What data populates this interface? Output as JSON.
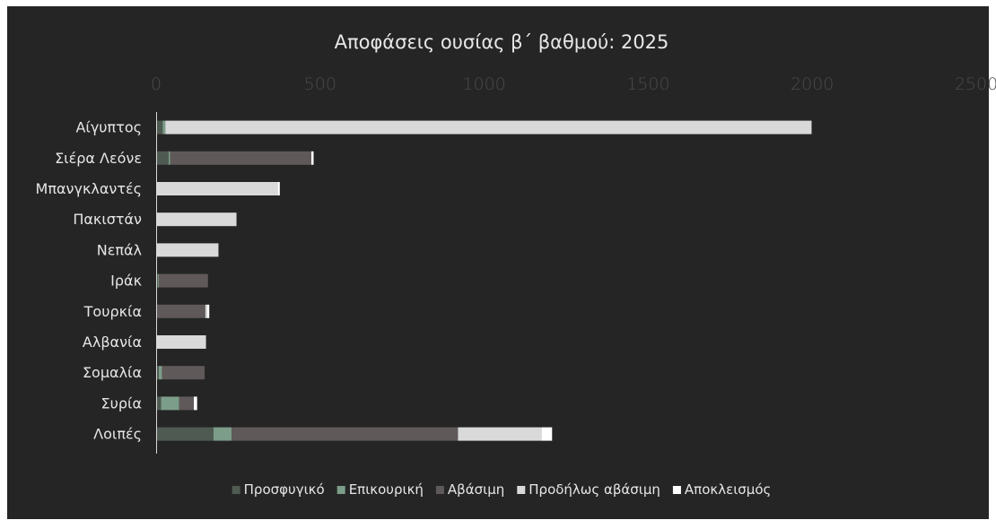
{
  "chart_data": {
    "type": "bar",
    "orientation": "horizontal",
    "stacked": true,
    "title": "Αποφάσεις ουσίας β΄ βαθμού: 2025",
    "xlabel": "",
    "ylabel": "",
    "xlim": [
      0,
      2500
    ],
    "xticks": [
      0,
      500,
      1000,
      1500,
      2000,
      2500
    ],
    "xtick_labels": [
      "0",
      "500",
      "1000",
      "1500",
      "2000",
      "2500"
    ],
    "grid": false,
    "legend_position": "bottom",
    "categories": [
      "Αίγυπτος",
      "Σιέρα Λεόνε",
      "Μπανγκλαντές",
      "Πακιστάν",
      "Νεπάλ",
      "Ιράκ",
      "Τουρκία",
      "Αλβανία",
      "Σομαλία",
      "Συρία",
      "Λοιπές"
    ],
    "series": [
      {
        "name": "Προσφυγικό",
        "color": "#4f5b52",
        "values": [
          20,
          38,
          0,
          0,
          0,
          5,
          0,
          0,
          8,
          15,
          175
        ]
      },
      {
        "name": "Επικουρική",
        "color": "#7c9d89",
        "values": [
          8,
          5,
          0,
          0,
          0,
          3,
          0,
          0,
          10,
          55,
          55
        ]
      },
      {
        "name": "Αβάσιμη",
        "color": "#605959",
        "values": [
          0,
          430,
          0,
          0,
          0,
          150,
          150,
          0,
          130,
          45,
          690
        ]
      },
      {
        "name": "Προδήλως αβάσιμη",
        "color": "#d9d9d9",
        "values": [
          1970,
          0,
          370,
          245,
          190,
          0,
          5,
          152,
          0,
          0,
          255
        ]
      },
      {
        "name": "Αποκλεισμός",
        "color": "#ffffff",
        "values": [
          0,
          7,
          7,
          0,
          0,
          0,
          7,
          0,
          0,
          10,
          32
        ]
      }
    ]
  }
}
